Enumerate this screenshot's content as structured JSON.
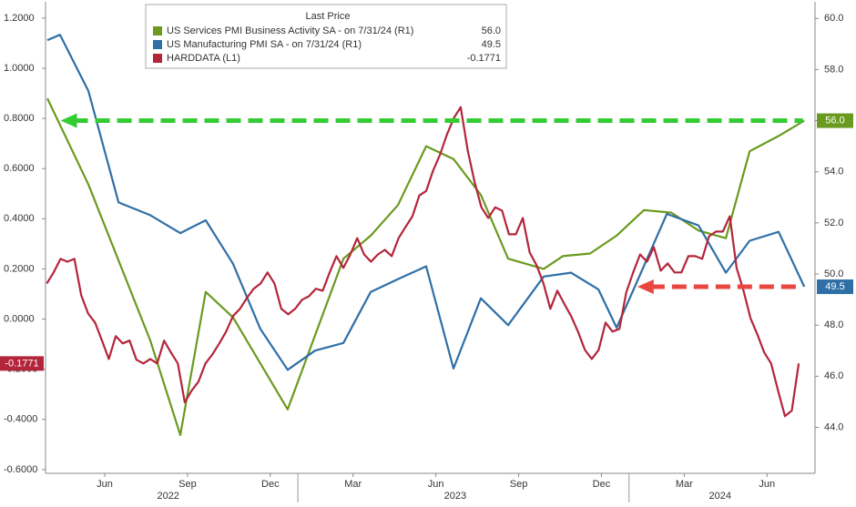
{
  "chart_data": {
    "type": "line",
    "legend_title": "Last Price",
    "xlim": [
      2.855,
      30.74
    ],
    "xticks": [
      {
        "value": 5,
        "label": "Jun"
      },
      {
        "value": 8,
        "label": "Sep"
      },
      {
        "value": 11,
        "label": "Dec"
      },
      {
        "value": 14,
        "label": "Mar"
      },
      {
        "value": 17,
        "label": "Jun"
      },
      {
        "value": 20,
        "label": "Sep"
      },
      {
        "value": 23,
        "label": "Dec"
      },
      {
        "value": 26,
        "label": "Mar"
      },
      {
        "value": 29,
        "label": "Jun"
      }
    ],
    "years": [
      {
        "value": 7.3,
        "label": "2022"
      },
      {
        "value": 17.7,
        "label": "2023"
      },
      {
        "value": 27.3,
        "label": "2024"
      }
    ],
    "year_breaks": [
      12,
      24
    ],
    "ylim": [
      -0.615,
      1.265
    ],
    "yticks": [
      {
        "value": 1.2,
        "label": "1.2000"
      },
      {
        "value": 1.0,
        "label": "1.0000"
      },
      {
        "value": 0.8,
        "label": "0.8000"
      },
      {
        "value": 0.6,
        "label": "0.6000"
      },
      {
        "value": 0.4,
        "label": "0.4000"
      },
      {
        "value": 0.2,
        "label": "0.2000"
      },
      {
        "value": 0.0,
        "label": "0.0000"
      },
      {
        "value": -0.2,
        "label": "-0.2000"
      },
      {
        "value": -0.4,
        "label": "-0.4000"
      },
      {
        "value": -0.6,
        "label": "-0.6000"
      }
    ],
    "y2lim": [
      42.2,
      60.65
    ],
    "y2ticks": [
      {
        "value": 60,
        "label": "60.0"
      },
      {
        "value": 58,
        "label": "58.0"
      },
      {
        "value": 56,
        "label": "56.0"
      },
      {
        "value": 54,
        "label": "54.0"
      },
      {
        "value": 52,
        "label": "52.0"
      },
      {
        "value": 50,
        "label": "50.0"
      },
      {
        "value": 48,
        "label": "48.0"
      },
      {
        "value": 46,
        "label": "46.0"
      },
      {
        "value": 44,
        "label": "44.0"
      }
    ],
    "grid": false,
    "series": [
      {
        "name": "US Services PMI Business Activity SA - on 7/31/24 (R1)",
        "color": "#6a9a1f",
        "axis": "y2",
        "last_label": "56.0",
        "x": [
          2.92,
          4.41,
          6.65,
          7.74,
          8.66,
          9.65,
          11.63,
          13.65,
          14.64,
          15.63,
          16.65,
          17.64,
          18.63,
          19.62,
          20.91,
          21.6,
          22.59,
          23.55,
          24.54,
          25.53,
          26.52,
          27.51,
          28.37,
          29.42,
          30.35
        ],
        "values": [
          56.87,
          53.5,
          47.4,
          43.7,
          49.3,
          48.3,
          44.7,
          50.6,
          51.5,
          52.7,
          55.0,
          54.5,
          53.1,
          50.6,
          50.2,
          50.7,
          50.8,
          51.5,
          52.5,
          52.4,
          51.7,
          51.4,
          54.8,
          55.4,
          56.0
        ]
      },
      {
        "name": "US Manufacturing PMI SA - on 7/31/24 (R1)",
        "color": "#2f6fa6",
        "axis": "y2",
        "last_label": "49.5",
        "x": [
          2.92,
          3.38,
          4.41,
          5.5,
          6.65,
          7.74,
          8.66,
          9.65,
          10.64,
          11.63,
          12.62,
          13.65,
          14.64,
          15.63,
          16.65,
          17.64,
          18.63,
          19.62,
          20.91,
          21.9,
          22.89,
          23.55,
          24.21,
          25.37,
          26.52,
          27.51,
          28.37,
          29.42,
          30.35
        ],
        "values": [
          59.15,
          59.36,
          57.16,
          52.8,
          52.3,
          51.6,
          52.1,
          50.4,
          47.85,
          46.25,
          47.0,
          47.3,
          49.3,
          49.8,
          50.3,
          46.3,
          49.05,
          48.0,
          49.9,
          50.05,
          49.4,
          47.9,
          49.5,
          52.35,
          51.9,
          50.05,
          51.3,
          51.65,
          49.5
        ]
      },
      {
        "name": "HARDDATA (L1)",
        "color": "#b3253a",
        "last_label": "-0.1771",
        "x": [
          2.9,
          3.15,
          3.4,
          3.65,
          3.9,
          4.15,
          4.4,
          4.65,
          4.9,
          5.15,
          5.4,
          5.65,
          5.9,
          6.15,
          6.4,
          6.65,
          6.9,
          7.15,
          7.4,
          7.65,
          7.9,
          8.15,
          8.4,
          8.65,
          8.9,
          9.15,
          9.4,
          9.65,
          9.9,
          10.15,
          10.4,
          10.65,
          10.9,
          11.15,
          11.4,
          11.65,
          11.9,
          12.15,
          12.4,
          12.65,
          12.9,
          13.15,
          13.4,
          13.65,
          13.9,
          14.15,
          14.4,
          14.65,
          14.9,
          15.15,
          15.4,
          15.65,
          15.9,
          16.15,
          16.4,
          16.65,
          16.9,
          17.15,
          17.4,
          17.65,
          17.9,
          18.15,
          18.4,
          18.65,
          18.9,
          19.15,
          19.4,
          19.65,
          19.9,
          20.15,
          20.4,
          20.65,
          20.9,
          21.15,
          21.4,
          21.65,
          21.9,
          22.15,
          22.4,
          22.65,
          22.9,
          23.15,
          23.4,
          23.65,
          23.9,
          24.15,
          24.4,
          24.65,
          24.9,
          25.15,
          25.4,
          25.65,
          25.9,
          26.15,
          26.4,
          26.65,
          26.9,
          27.15,
          27.4,
          27.65,
          27.9,
          28.15,
          28.4,
          28.65,
          28.9,
          29.15,
          29.4,
          29.65,
          29.9,
          30.15
        ],
        "values": [
          0.142,
          0.186,
          0.24,
          0.229,
          0.24,
          0.095,
          0.022,
          -0.014,
          -0.086,
          -0.159,
          -0.068,
          -0.097,
          -0.086,
          -0.162,
          -0.177,
          -0.159,
          -0.177,
          -0.086,
          -0.133,
          -0.177,
          -0.332,
          -0.285,
          -0.249,
          -0.177,
          -0.141,
          -0.097,
          -0.05,
          0.012,
          0.041,
          0.084,
          0.121,
          0.142,
          0.186,
          0.142,
          0.041,
          0.019,
          0.041,
          0.077,
          0.091,
          0.121,
          0.113,
          0.186,
          0.251,
          0.204,
          0.258,
          0.323,
          0.258,
          0.229,
          0.258,
          0.276,
          0.251,
          0.323,
          0.367,
          0.41,
          0.493,
          0.511,
          0.592,
          0.656,
          0.736,
          0.801,
          0.845,
          0.675,
          0.548,
          0.446,
          0.403,
          0.446,
          0.432,
          0.338,
          0.338,
          0.403,
          0.265,
          0.215,
          0.142,
          0.041,
          0.113,
          0.062,
          0.012,
          -0.05,
          -0.123,
          -0.159,
          -0.123,
          -0.014,
          -0.05,
          -0.039,
          0.106,
          0.186,
          0.258,
          0.229,
          0.287,
          0.193,
          0.222,
          0.186,
          0.186,
          0.251,
          0.251,
          0.24,
          0.33,
          0.349,
          0.349,
          0.41,
          0.204,
          0.113,
          0.004,
          -0.061,
          -0.133,
          -0.177,
          -0.285,
          -0.387,
          -0.365,
          -0.1771
        ]
      }
    ],
    "annotations": [
      {
        "type": "arrow",
        "color": "#33cc33",
        "axis": "y2",
        "x": [
          3.4,
          30.3
        ],
        "y": 56.0
      },
      {
        "type": "arrow",
        "color": "#e8473f",
        "axis": "y2",
        "x": [
          24.3,
          30.3
        ],
        "y": 49.5
      }
    ]
  }
}
